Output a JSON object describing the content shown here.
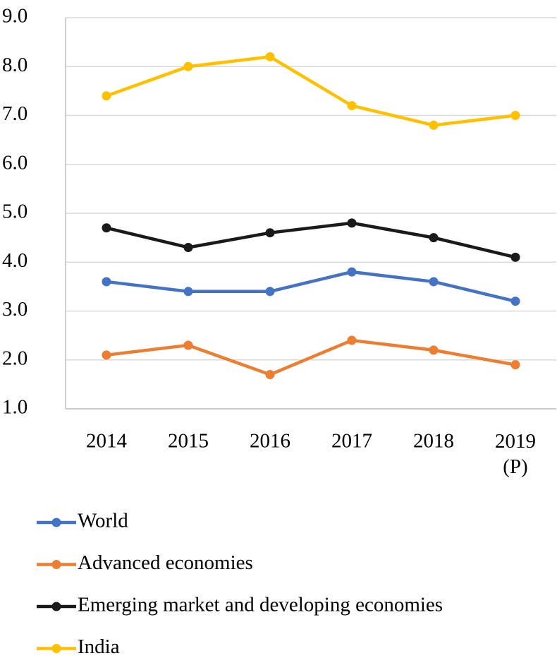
{
  "chart_data": {
    "type": "line",
    "categories": [
      "2014",
      "2015",
      "2016",
      "2017",
      "2018",
      "2019 (P)"
    ],
    "series": [
      {
        "name": "World",
        "color": "#4472c4",
        "values": [
          3.6,
          3.4,
          3.4,
          3.8,
          3.6,
          3.2
        ]
      },
      {
        "name": "Advanced economies",
        "color": "#ed7d31",
        "values": [
          2.1,
          2.3,
          1.7,
          2.4,
          2.2,
          1.9
        ]
      },
      {
        "name": "Emerging market and developing economies",
        "color": "#1a1a1a",
        "values": [
          4.7,
          4.3,
          4.6,
          4.8,
          4.5,
          4.1
        ]
      },
      {
        "name": "India",
        "color": "#ffc000",
        "values": [
          7.4,
          8.0,
          8.2,
          7.2,
          6.8,
          7.0
        ]
      }
    ],
    "ylim": [
      1.0,
      9.0
    ],
    "yticks": [
      {
        "value": 1,
        "label": "1.0"
      },
      {
        "value": 2,
        "label": "2.0"
      },
      {
        "value": 3,
        "label": "3.0"
      },
      {
        "value": 4,
        "label": "4.0"
      },
      {
        "value": 5,
        "label": "5.0"
      },
      {
        "value": 6,
        "label": "6.0"
      },
      {
        "value": 7,
        "label": "7.0"
      },
      {
        "value": 8,
        "label": "8.0"
      },
      {
        "value": 9,
        "label": "9.0"
      }
    ],
    "grid": true,
    "legend": "bottom"
  }
}
